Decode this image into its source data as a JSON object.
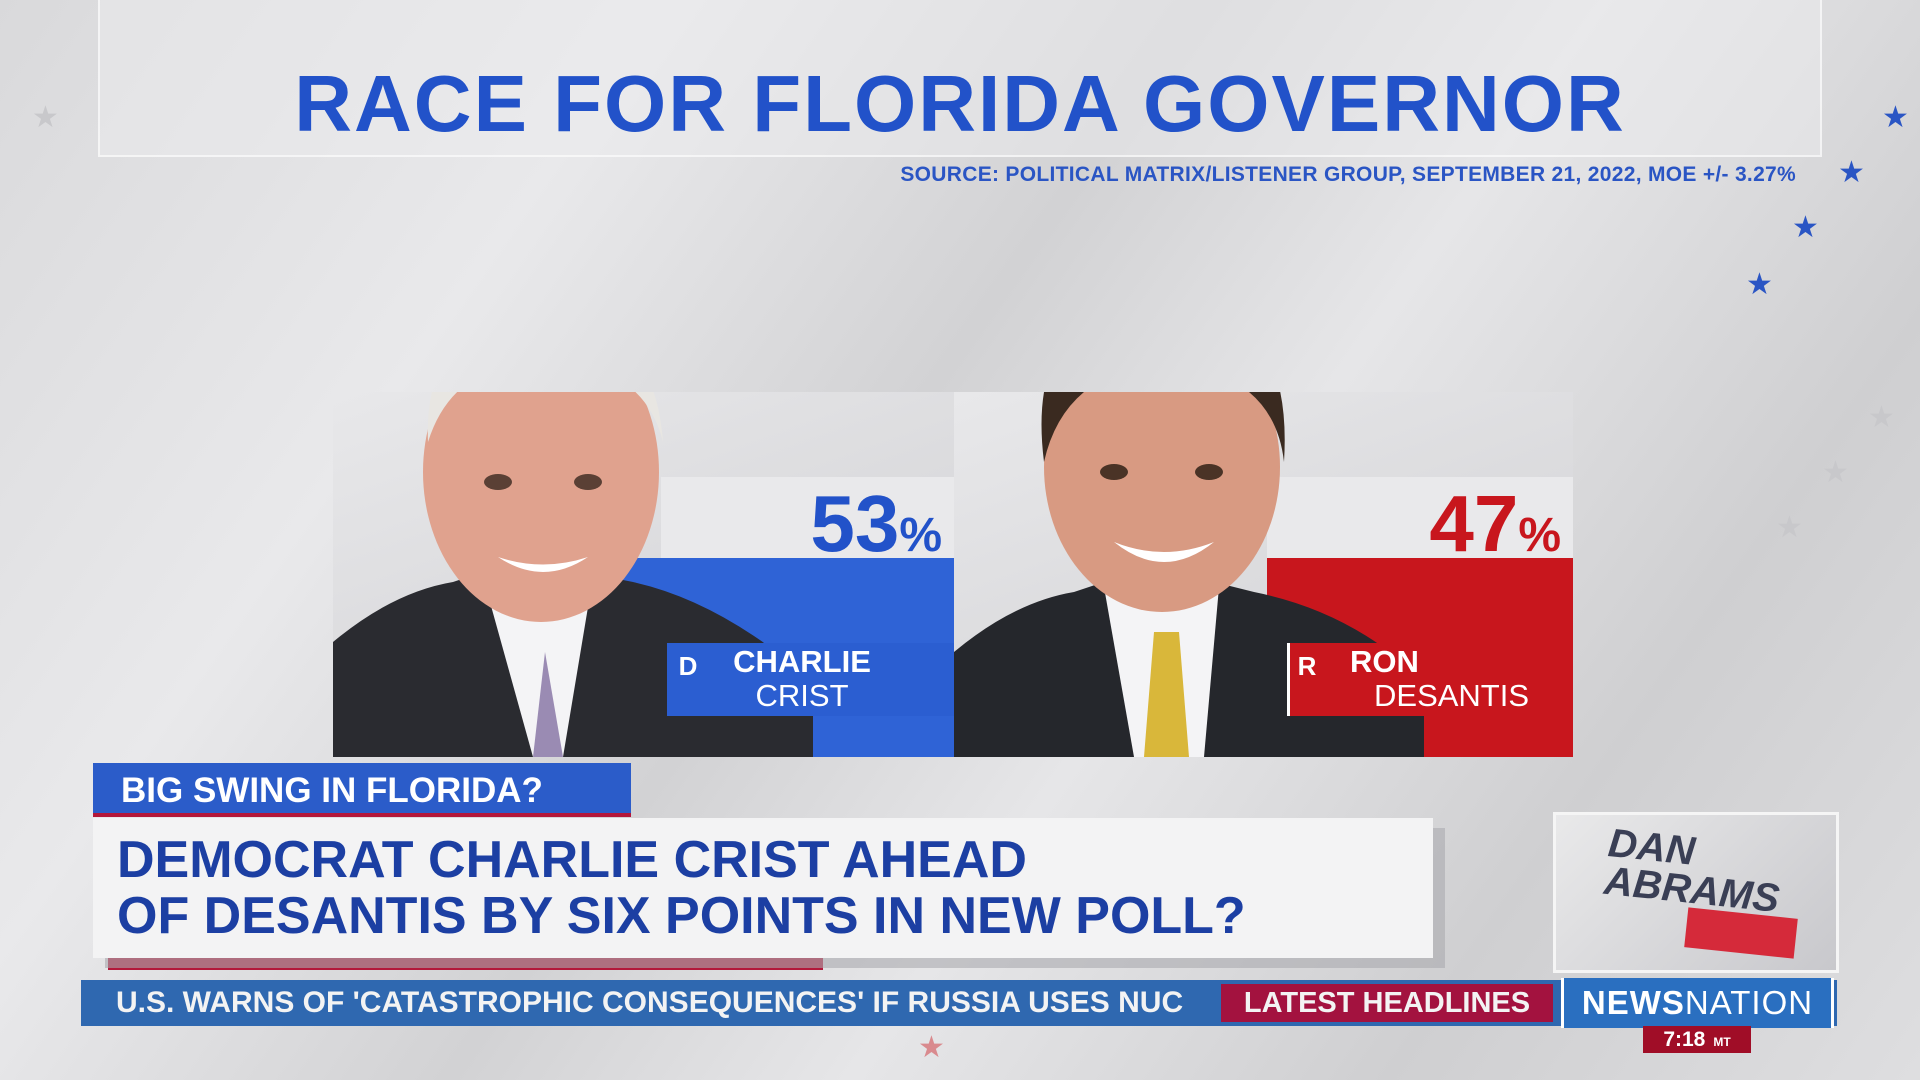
{
  "graphic": {
    "title": "RACE FOR FLORIDA GOVERNOR",
    "source": "SOURCE: POLITICAL MATRIX/LISTENER GROUP, SEPTEMBER 21, 2022, MOE +/- 3.27%"
  },
  "candidates": [
    {
      "party": "D",
      "first_name": "CHARLIE",
      "last_name": "CRIST",
      "percent": "53",
      "percent_sign": "%",
      "value": 53,
      "color": "#2f63d6"
    },
    {
      "party": "R",
      "first_name": "RON",
      "last_name": "DESANTIS",
      "percent": "47",
      "percent_sign": "%",
      "value": 47,
      "color": "#c8161d"
    }
  ],
  "lower_third": {
    "tag": "BIG SWING IN FLORIDA?",
    "headline_line1": "DEMOCRAT CHARLIE CRIST AHEAD",
    "headline_line2": "OF DESANTIS BY SIX POINTS IN NEW POLL?"
  },
  "ticker": {
    "text": "U.S. WARNS OF 'CATASTROPHIC CONSEQUENCES' IF RUSSIA USES NUC",
    "section": "LATEST HEADLINES",
    "network_bold": "NEWS",
    "network_light": "NATION",
    "time": "7:18",
    "timezone": "MT"
  },
  "show_logo": {
    "line1": "DAN",
    "line2": "ABRAMS"
  }
}
